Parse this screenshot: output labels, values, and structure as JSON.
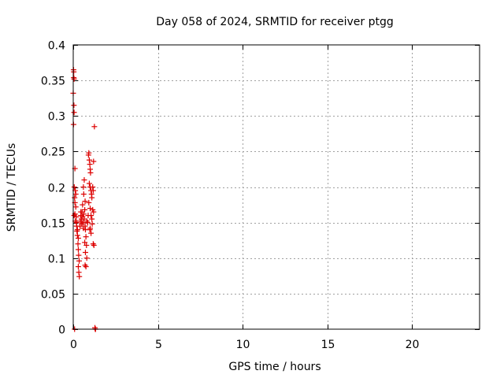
{
  "chart_data": {
    "type": "scatter",
    "title": "Day 058 of 2024, SRMTID for receiver ptgg",
    "xlabel": "GPS time / hours",
    "ylabel": "SRMTID / TECUs",
    "xlim": [
      0,
      24
    ],
    "ylim": [
      0,
      0.4
    ],
    "x_ticks": [
      0,
      5,
      10,
      15,
      20
    ],
    "x_tick_labels": [
      "0",
      "5",
      "10",
      "15",
      "20"
    ],
    "y_ticks": [
      0,
      0.05,
      0.1,
      0.15,
      0.2,
      0.25,
      0.3,
      0.35,
      0.4
    ],
    "y_tick_labels": [
      "0",
      "0.05",
      "0.1",
      "0.15",
      "0.2",
      "0.25",
      "0.3",
      "0.35",
      "0.4"
    ],
    "grid": true,
    "marker": "plus",
    "color": "#dd0000",
    "series": [
      {
        "points": [
          [
            0.02,
            0.365
          ],
          [
            0.03,
            0.362
          ],
          [
            0.03,
            0.354
          ],
          [
            0.05,
            0.352
          ],
          [
            0.0,
            0.332
          ],
          [
            0.04,
            0.315
          ],
          [
            0.05,
            0.305
          ],
          [
            0.02,
            0.288
          ],
          [
            0.1,
            0.226
          ],
          [
            0.06,
            0.2
          ],
          [
            0.12,
            0.195
          ],
          [
            0.08,
            0.185
          ],
          [
            0.1,
            0.178
          ],
          [
            0.15,
            0.172
          ],
          [
            0.1,
            0.162
          ],
          [
            0.18,
            0.158
          ],
          [
            0.12,
            0.152
          ],
          [
            0.2,
            0.145
          ],
          [
            0.22,
            0.138
          ],
          [
            0.25,
            0.132
          ],
          [
            0.3,
            0.128
          ],
          [
            0.28,
            0.12
          ],
          [
            0.3,
            0.112
          ],
          [
            0.32,
            0.104
          ],
          [
            0.35,
            0.096
          ],
          [
            0.3,
            0.088
          ],
          [
            0.33,
            0.08
          ],
          [
            0.36,
            0.074
          ],
          [
            0.4,
            0.145
          ],
          [
            0.42,
            0.152
          ],
          [
            0.45,
            0.16
          ],
          [
            0.48,
            0.155
          ],
          [
            0.5,
            0.148
          ],
          [
            0.52,
            0.165
          ],
          [
            0.55,
            0.158
          ],
          [
            0.58,
            0.15
          ],
          [
            0.6,
            0.142
          ],
          [
            0.62,
            0.162
          ],
          [
            0.65,
            0.155
          ],
          [
            0.68,
            0.168
          ],
          [
            0.7,
            0.145
          ],
          [
            0.6,
            0.2
          ],
          [
            0.62,
            0.19
          ],
          [
            0.65,
            0.21
          ],
          [
            0.7,
            0.18
          ],
          [
            0.72,
            0.14
          ],
          [
            0.75,
            0.13
          ],
          [
            0.68,
            0.122
          ],
          [
            0.78,
            0.118
          ],
          [
            0.72,
            0.108
          ],
          [
            0.8,
            0.1
          ],
          [
            0.7,
            0.09
          ],
          [
            0.75,
            0.088
          ],
          [
            0.85,
            0.15
          ],
          [
            0.88,
            0.16
          ],
          [
            0.9,
            0.245
          ],
          [
            0.92,
            0.248
          ],
          [
            0.95,
            0.238
          ],
          [
            0.98,
            0.232
          ],
          [
            1.0,
            0.225
          ],
          [
            1.02,
            0.22
          ],
          [
            0.95,
            0.205
          ],
          [
            1.0,
            0.2
          ],
          [
            1.05,
            0.195
          ],
          [
            1.08,
            0.19
          ],
          [
            1.1,
            0.185
          ],
          [
            0.92,
            0.178
          ],
          [
            1.0,
            0.17
          ],
          [
            1.05,
            0.16
          ],
          [
            1.1,
            0.155
          ],
          [
            1.12,
            0.148
          ],
          [
            0.98,
            0.14
          ],
          [
            1.05,
            0.135
          ],
          [
            1.15,
            0.2
          ],
          [
            1.18,
            0.195
          ],
          [
            1.2,
            0.236
          ],
          [
            1.15,
            0.168
          ],
          [
            1.2,
            0.165
          ],
          [
            1.18,
            0.12
          ],
          [
            1.22,
            0.118
          ],
          [
            1.25,
            0.285
          ],
          [
            1.0,
            0.142
          ],
          [
            0.8,
            0.152
          ],
          [
            0.55,
            0.175
          ],
          [
            0.45,
            0.165
          ],
          [
            0.25,
            0.14
          ],
          [
            0.2,
            0.15
          ],
          [
            0.15,
            0.19
          ],
          [
            0.05,
            0.16
          ],
          [
            0.08,
            0.0
          ],
          [
            1.3,
            0.0
          ],
          [
            1.32,
            0.0
          ],
          [
            1.28,
            0.002
          ]
        ]
      }
    ]
  }
}
